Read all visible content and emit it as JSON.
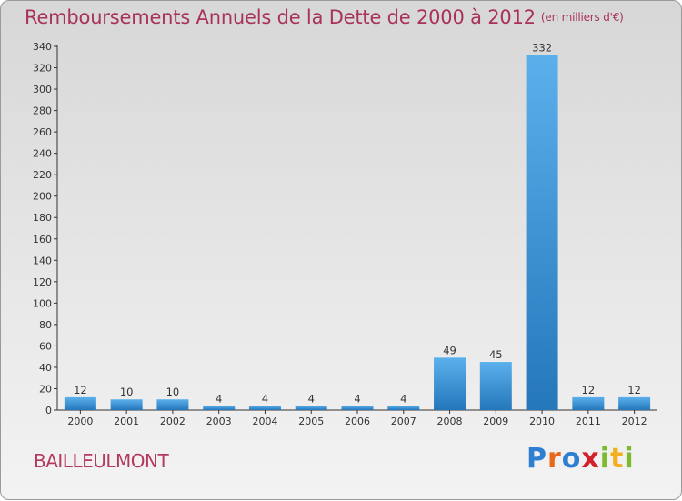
{
  "chart_data": {
    "type": "bar",
    "title": "Remboursements Annuels de la Dette de 2000 à 2012",
    "unit_label": "(en milliers d'€)",
    "categories": [
      "2000",
      "2001",
      "2002",
      "2003",
      "2004",
      "2005",
      "2006",
      "2007",
      "2008",
      "2009",
      "2010",
      "2011",
      "2012"
    ],
    "values": [
      12,
      10,
      10,
      4,
      4,
      4,
      4,
      4,
      49,
      45,
      332,
      12,
      12
    ],
    "ylim": [
      0,
      340
    ],
    "yticks": [
      0,
      20,
      40,
      60,
      80,
      100,
      120,
      140,
      160,
      180,
      200,
      220,
      240,
      260,
      280,
      300,
      320,
      340
    ],
    "xlabel": "",
    "ylabel": "",
    "grid": false,
    "bar_color": "#3d93db"
  },
  "commune": "BAILLEULMONT",
  "logo": {
    "letters": [
      "P",
      "r",
      "o",
      "x",
      "i",
      "t",
      "i"
    ]
  }
}
